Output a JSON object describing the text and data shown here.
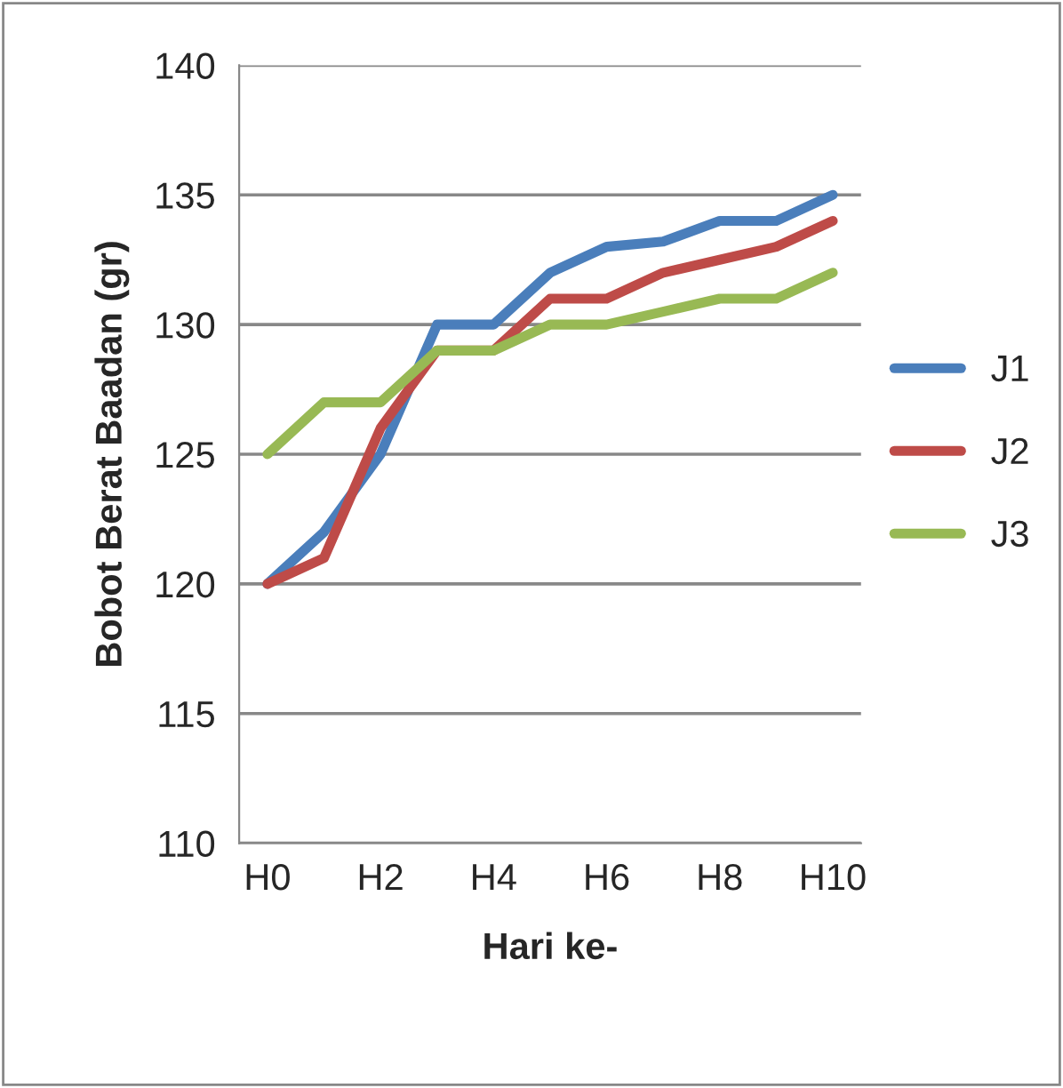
{
  "chart_data": {
    "type": "line",
    "xlabel": "Hari ke-",
    "ylabel": "Bobot Berat Baadan (gr)",
    "categories": [
      "H0",
      null,
      "H2",
      null,
      "H4",
      null,
      "H6",
      null,
      "H8",
      null,
      "H10"
    ],
    "series": [
      {
        "name": "J1",
        "color": "#4a7ebb",
        "values": [
          120,
          122,
          125,
          130,
          130,
          132,
          133,
          133.2,
          134,
          134,
          135
        ]
      },
      {
        "name": "J2",
        "color": "#be4b48",
        "values": [
          120,
          121,
          126,
          129,
          129,
          131,
          131,
          132,
          132.5,
          133,
          134
        ]
      },
      {
        "name": "J3",
        "color": "#98b954",
        "values": [
          125,
          127,
          127,
          129,
          129,
          130,
          130,
          130.5,
          131,
          131,
          132
        ]
      }
    ],
    "ylim": [
      110,
      140
    ],
    "yticks": [
      110,
      115,
      120,
      125,
      130,
      135,
      140
    ],
    "grid": "y",
    "legend": "right",
    "marker": "none",
    "line_style": "solid"
  }
}
